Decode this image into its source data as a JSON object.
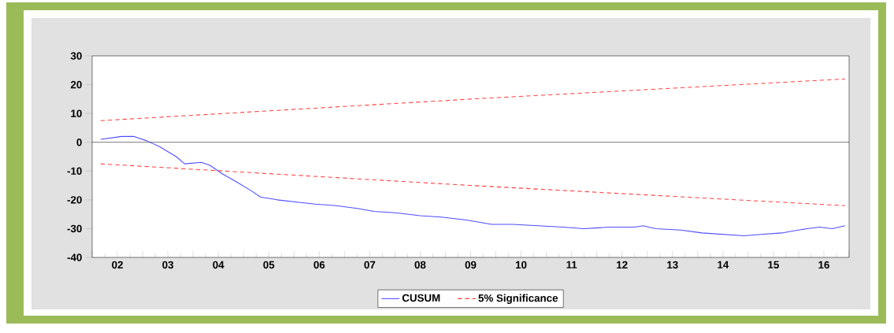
{
  "chart_data": {
    "type": "line",
    "x": [
      "2002-03",
      "2002-08",
      "2002-11",
      "2003-02",
      "2003-05",
      "2003-09",
      "2003-11",
      "2004-03",
      "2004-05",
      "2004-08",
      "2004-11",
      "2005-03",
      "2005-05",
      "2005-09",
      "2006-03",
      "2006-06",
      "2006-11",
      "2007-04",
      "2007-08",
      "2008-01",
      "2008-07",
      "2008-12",
      "2009-06",
      "2009-12",
      "2010-05",
      "2010-11",
      "2011-05",
      "2011-10",
      "2012-04",
      "2012-10",
      "2012-12",
      "2013-03",
      "2013-09",
      "2014-02",
      "2014-07",
      "2014-12",
      "2015-04",
      "2015-09",
      "2015-11",
      "2016-03",
      "2016-06",
      "2016-09",
      "2016-12"
    ],
    "series": [
      {
        "name": "CUSUM",
        "color": "#4d4dff",
        "line_style": "solid",
        "values": [
          1,
          2,
          2,
          0.5,
          -1.5,
          -5,
          -7.5,
          -7,
          -8,
          -11,
          -13.5,
          -17,
          -19,
          -20,
          -21,
          -21.5,
          -22,
          -23,
          -24,
          -24.5,
          -25.5,
          -26,
          -27,
          -28.5,
          -28.5,
          -29,
          -29.5,
          -30,
          -29.5,
          -29.5,
          -29,
          -30,
          -30.5,
          -31.5,
          -32,
          -32.5,
          -32,
          -31.5,
          -31,
          -30,
          -29.5,
          -30,
          -29
        ]
      },
      {
        "name": "5% Significance",
        "color": "#ff4040",
        "line_style": "dashed",
        "x": [
          "2002-03",
          "2009-07",
          "2016-12"
        ],
        "values": [
          7.5,
          15,
          22
        ]
      },
      {
        "color": "#ff4040",
        "line_style": "dashed",
        "x": [
          "2002-03",
          "2009-07",
          "2016-12"
        ],
        "values": [
          -7.5,
          -15,
          -22
        ]
      }
    ],
    "xlim": [
      "2002-01",
      "2017-01"
    ],
    "xticks": [
      {
        "value": "2002-01",
        "label": null
      },
      {
        "value": "2002-07",
        "label": "02"
      },
      {
        "value": "2003-01",
        "label": null
      },
      {
        "value": "2003-07",
        "label": "03"
      },
      {
        "value": "2004-01",
        "label": null
      },
      {
        "value": "2004-07",
        "label": "04"
      },
      {
        "value": "2005-01",
        "label": null
      },
      {
        "value": "2005-07",
        "label": "05"
      },
      {
        "value": "2006-01",
        "label": null
      },
      {
        "value": "2006-07",
        "label": "06"
      },
      {
        "value": "2007-01",
        "label": null
      },
      {
        "value": "2007-07",
        "label": "07"
      },
      {
        "value": "2008-01",
        "label": null
      },
      {
        "value": "2008-07",
        "label": "08"
      },
      {
        "value": "2009-01",
        "label": null
      },
      {
        "value": "2009-07",
        "label": "09"
      },
      {
        "value": "2010-01",
        "label": null
      },
      {
        "value": "2010-07",
        "label": "10"
      },
      {
        "value": "2011-01",
        "label": null
      },
      {
        "value": "2011-07",
        "label": "11"
      },
      {
        "value": "2012-01",
        "label": null
      },
      {
        "value": "2012-07",
        "label": "12"
      },
      {
        "value": "2013-01",
        "label": null
      },
      {
        "value": "2013-07",
        "label": "13"
      },
      {
        "value": "2014-01",
        "label": null
      },
      {
        "value": "2014-07",
        "label": "14"
      },
      {
        "value": "2015-01",
        "label": null
      },
      {
        "value": "2015-07",
        "label": "15"
      },
      {
        "value": "2016-01",
        "label": null
      },
      {
        "value": "2016-07",
        "label": "16"
      },
      {
        "value": "2017-01",
        "label": null
      }
    ],
    "ylim": [
      -40,
      30
    ],
    "yticks": [
      -40,
      -30,
      -20,
      -10,
      0,
      10,
      20,
      30
    ],
    "ref_lines": [
      {
        "axis": "y",
        "value": 0,
        "color": "#000000"
      }
    ],
    "grid": false,
    "legend": "bottom",
    "marker": "none"
  }
}
